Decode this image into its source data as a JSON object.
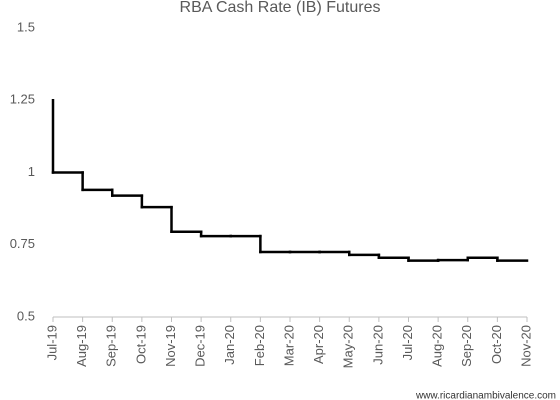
{
  "chart_data": {
    "type": "step",
    "title": "RBA Cash Rate (IB) Futures",
    "categories": [
      "Jul-19",
      "Aug-19",
      "Sep-19",
      "Oct-19",
      "Nov-19",
      "Dec-19",
      "Jan-20",
      "Feb-20",
      "Mar-20",
      "Apr-20",
      "May-20",
      "Jun-20",
      "Jul-20",
      "Aug-20",
      "Sep-20",
      "Oct-20",
      "Nov-20"
    ],
    "values": [
      1.25,
      1.0,
      0.94,
      0.92,
      0.88,
      0.795,
      0.78,
      0.78,
      0.725,
      0.725,
      0.725,
      0.715,
      0.705,
      0.695,
      0.697,
      0.705,
      0.695
    ],
    "color": "#000000",
    "ylim": [
      0.5,
      1.5
    ],
    "yticks": [
      0.5,
      0.75,
      1,
      1.25,
      1.5
    ],
    "grid": false,
    "source": "www.ricardianambivalence.com"
  }
}
